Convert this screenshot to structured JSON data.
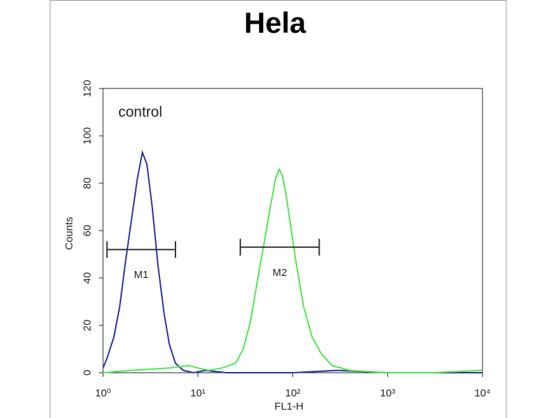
{
  "chart_data": {
    "type": "line",
    "title": "Hela",
    "annotation": "control",
    "x_label": "FL1-H",
    "y_label": "Counts",
    "xscale": "log",
    "xlim": [
      1,
      10000
    ],
    "ylim": [
      0,
      120
    ],
    "xticks": [
      {
        "value": 1,
        "label": "10⁰"
      },
      {
        "value": 10,
        "label": "10¹"
      },
      {
        "value": 100,
        "label": "10²"
      },
      {
        "value": 1000,
        "label": "10³"
      },
      {
        "value": 10000,
        "label": "10⁴"
      }
    ],
    "yticks": [
      0,
      20,
      40,
      60,
      80,
      100,
      120
    ],
    "series": [
      {
        "color": "#2b2f9e",
        "x": [
          1,
          1.1,
          1.3,
          1.5,
          1.7,
          2.0,
          2.3,
          2.6,
          2.9,
          3.3,
          3.8,
          4.4,
          5.0,
          5.8,
          7,
          9,
          12,
          20,
          40,
          100,
          300,
          1000,
          3000,
          10000
        ],
        "values": [
          2,
          6,
          15,
          28,
          45,
          65,
          82,
          93,
          88,
          70,
          45,
          25,
          12,
          4,
          1,
          0,
          1,
          0,
          0,
          0,
          1,
          0,
          0,
          0
        ]
      },
      {
        "color": "#4ee64e",
        "x": [
          1,
          2,
          5,
          8,
          10,
          13,
          18,
          25,
          30,
          36,
          42,
          50,
          58,
          66,
          72,
          78,
          85,
          95,
          110,
          130,
          160,
          200,
          260,
          400,
          1000,
          3000,
          10000
        ],
        "values": [
          0,
          1,
          2,
          3,
          2,
          1,
          2,
          4,
          10,
          22,
          38,
          55,
          70,
          82,
          86,
          83,
          75,
          62,
          45,
          28,
          15,
          8,
          3,
          1,
          0,
          0,
          1
        ]
      }
    ],
    "markers": [
      {
        "label": "M1",
        "range": [
          1.1,
          5.8
        ],
        "y": 52
      },
      {
        "label": "M2",
        "range": [
          28,
          190
        ],
        "y": 53
      }
    ]
  }
}
